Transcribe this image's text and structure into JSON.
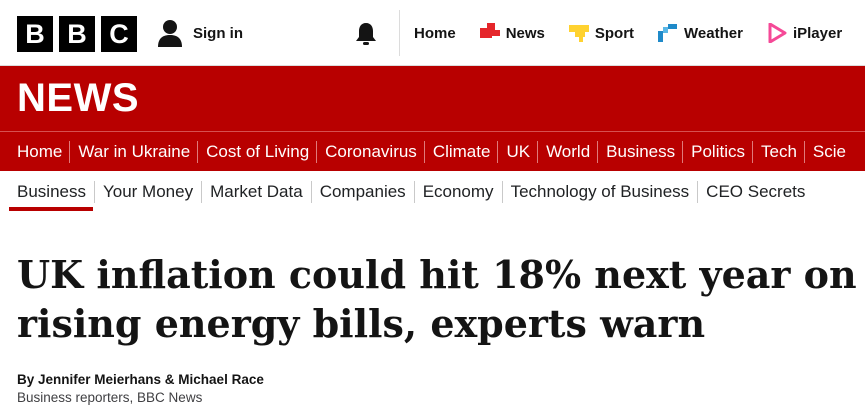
{
  "brand": {
    "letters": [
      "B",
      "B",
      "C"
    ]
  },
  "account": {
    "signin_label": "Sign in"
  },
  "top_nav": [
    {
      "label": "Home",
      "icon": "none"
    },
    {
      "label": "News",
      "icon": "news-icon",
      "color": "#e5262b"
    },
    {
      "label": "Sport",
      "icon": "sport-icon",
      "color": "#ffd230"
    },
    {
      "label": "Weather",
      "icon": "weather-icon",
      "color": "#1f8ac9"
    },
    {
      "label": "iPlayer",
      "icon": "iplayer-icon",
      "color": "#f54997"
    }
  ],
  "section": {
    "title": "NEWS",
    "color": "#b80000"
  },
  "main_nav": [
    "Home",
    "War in Ukraine",
    "Cost of Living",
    "Coronavirus",
    "Climate",
    "UK",
    "World",
    "Business",
    "Politics",
    "Tech",
    "Scie"
  ],
  "main_nav_active": "Business",
  "sub_nav": [
    "Business",
    "Your Money",
    "Market Data",
    "Companies",
    "Economy",
    "Technology of Business",
    "CEO Secrets"
  ],
  "article": {
    "headline": "UK inflation could hit 18% next year on rising energy bills, experts warn",
    "byline": "By Jennifer Meierhans & Michael Race",
    "role": "Business reporters, BBC News"
  }
}
